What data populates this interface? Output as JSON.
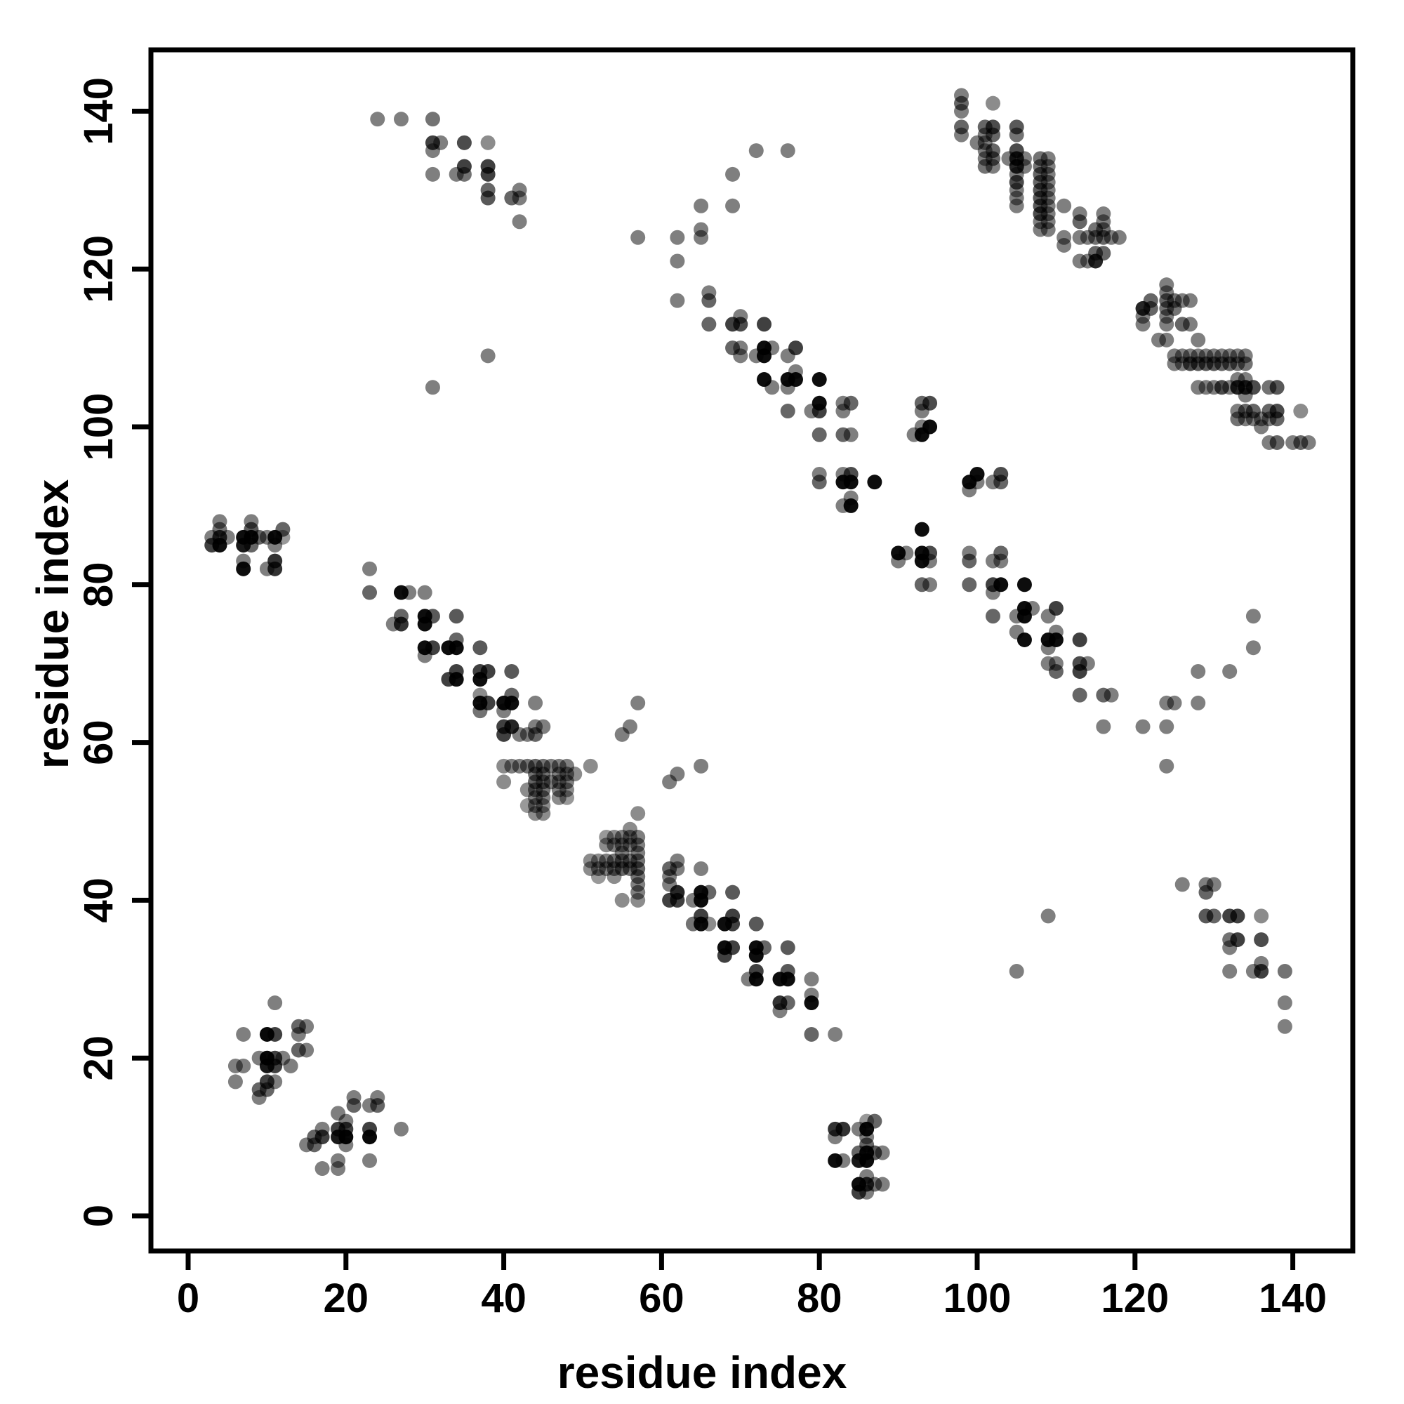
{
  "figure": {
    "background": "#ffffff",
    "x_axis_title": "residue index",
    "y_axis_title": "residue index"
  },
  "chart_data": {
    "type": "scatter",
    "title": "",
    "xlabel": "residue index",
    "ylabel": "residue index",
    "x_ticks": [
      0,
      20,
      40,
      60,
      80,
      100,
      120,
      140
    ],
    "y_ticks": [
      0,
      20,
      40,
      60,
      80,
      100,
      120,
      140
    ],
    "xlim": [
      -5,
      148
    ],
    "ylim": [
      -5,
      148
    ],
    "grid": false,
    "legend": "none",
    "point_color": "#000000",
    "symmetric_about_diagonal": true,
    "points_note": "points given for upper triangle (x<y); plot renders each point and its mirror (y,x); third value = darkness 0-1",
    "points": [
      [
        11,
        27,
        0.5
      ],
      [
        7,
        23,
        0.5
      ],
      [
        10,
        23,
        0.97
      ],
      [
        11,
        23,
        0.75
      ],
      [
        14,
        23,
        0.5
      ],
      [
        14,
        24,
        0.6
      ],
      [
        15,
        24,
        0.5
      ],
      [
        9,
        20,
        0.5
      ],
      [
        10,
        20,
        0.97
      ],
      [
        11,
        20,
        0.75
      ],
      [
        12,
        20,
        0.5
      ],
      [
        14,
        21,
        0.6
      ],
      [
        15,
        21,
        0.5
      ],
      [
        6,
        19,
        0.5
      ],
      [
        7,
        19,
        0.5
      ],
      [
        10,
        19,
        0.9
      ],
      [
        11,
        19,
        0.75
      ],
      [
        13,
        19,
        0.5
      ],
      [
        6,
        17,
        0.5
      ],
      [
        10,
        17,
        0.75
      ],
      [
        11,
        17,
        0.5
      ],
      [
        9,
        16,
        0.6
      ],
      [
        10,
        16,
        0.6
      ],
      [
        9,
        15,
        0.5
      ],
      [
        4,
        88,
        0.5
      ],
      [
        8,
        88,
        0.5
      ],
      [
        4,
        87,
        0.55
      ],
      [
        8,
        87,
        0.65
      ],
      [
        12,
        87,
        0.6
      ],
      [
        3,
        86,
        0.5
      ],
      [
        4,
        86,
        0.8
      ],
      [
        5,
        86,
        0.5
      ],
      [
        7,
        86,
        0.95
      ],
      [
        8,
        86,
        0.95
      ],
      [
        9,
        86,
        0.6
      ],
      [
        10,
        86,
        0.5
      ],
      [
        11,
        86,
        0.95
      ],
      [
        12,
        86,
        0.4
      ],
      [
        3,
        85,
        0.75
      ],
      [
        4,
        85,
        0.95
      ],
      [
        7,
        85,
        0.9
      ],
      [
        8,
        85,
        0.6
      ],
      [
        11,
        85,
        0.5
      ],
      [
        7,
        83,
        0.5
      ],
      [
        11,
        83,
        0.8
      ],
      [
        7,
        82,
        0.95
      ],
      [
        10,
        82,
        0.5
      ],
      [
        11,
        82,
        0.8
      ],
      [
        24,
        139,
        0.5
      ],
      [
        27,
        139,
        0.5
      ],
      [
        31,
        139,
        0.55
      ],
      [
        31,
        136,
        0.75
      ],
      [
        32,
        136,
        0.5
      ],
      [
        35,
        136,
        0.7
      ],
      [
        38,
        136,
        0.45
      ],
      [
        31,
        135,
        0.5
      ],
      [
        35,
        133,
        0.75
      ],
      [
        38,
        133,
        0.75
      ],
      [
        31,
        132,
        0.5
      ],
      [
        34,
        132,
        0.5
      ],
      [
        35,
        132,
        0.55
      ],
      [
        38,
        132,
        0.75
      ],
      [
        38,
        130,
        0.6
      ],
      [
        42,
        130,
        0.5
      ],
      [
        38,
        129,
        0.65
      ],
      [
        41,
        129,
        0.6
      ],
      [
        42,
        129,
        0.5
      ],
      [
        42,
        126,
        0.5
      ],
      [
        23,
        82,
        0.5
      ],
      [
        23,
        79,
        0.6
      ],
      [
        27,
        79,
        0.95
      ],
      [
        28,
        79,
        0.5
      ],
      [
        30,
        79,
        0.5
      ],
      [
        27,
        76,
        0.6
      ],
      [
        30,
        76,
        0.95
      ],
      [
        31,
        76,
        0.65
      ],
      [
        34,
        76,
        0.65
      ],
      [
        26,
        75,
        0.5
      ],
      [
        27,
        75,
        0.8
      ],
      [
        30,
        75,
        0.95
      ],
      [
        34,
        73,
        0.6
      ],
      [
        30,
        72,
        0.95
      ],
      [
        31,
        72,
        0.75
      ],
      [
        33,
        72,
        0.95
      ],
      [
        34,
        72,
        0.95
      ],
      [
        37,
        72,
        0.65
      ],
      [
        30,
        71,
        0.5
      ],
      [
        34,
        69,
        0.75
      ],
      [
        37,
        69,
        0.75
      ],
      [
        38,
        69,
        0.75
      ],
      [
        41,
        69,
        0.65
      ],
      [
        33,
        68,
        0.75
      ],
      [
        34,
        68,
        0.95
      ],
      [
        37,
        68,
        0.95
      ],
      [
        37,
        66,
        0.45
      ],
      [
        41,
        66,
        0.6
      ],
      [
        37,
        65,
        0.95
      ],
      [
        38,
        65,
        0.75
      ],
      [
        40,
        65,
        0.95
      ],
      [
        41,
        65,
        0.95
      ],
      [
        44,
        65,
        0.5
      ],
      [
        37,
        64,
        0.55
      ],
      [
        40,
        64,
        0.5
      ],
      [
        40,
        62,
        0.75
      ],
      [
        41,
        62,
        0.85
      ],
      [
        44,
        62,
        0.5
      ],
      [
        45,
        62,
        0.5
      ],
      [
        40,
        61,
        0.75
      ],
      [
        42,
        61,
        0.5
      ],
      [
        43,
        61,
        0.5
      ],
      [
        44,
        61,
        0.6
      ],
      [
        40,
        57,
        0.45
      ],
      [
        41,
        57,
        0.5
      ],
      [
        42,
        57,
        0.5
      ],
      [
        43,
        57,
        0.55
      ],
      [
        44,
        57,
        0.6
      ],
      [
        45,
        57,
        0.55
      ],
      [
        46,
        57,
        0.5
      ],
      [
        47,
        57,
        0.5
      ],
      [
        48,
        57,
        0.5
      ],
      [
        40,
        55,
        0.45
      ],
      [
        44,
        56,
        0.55
      ],
      [
        45,
        56,
        0.55
      ],
      [
        47,
        56,
        0.5
      ],
      [
        48,
        56,
        0.5
      ],
      [
        49,
        56,
        0.45
      ],
      [
        44,
        55,
        0.6
      ],
      [
        45,
        55,
        0.55
      ],
      [
        46,
        55,
        0.5
      ],
      [
        47,
        55,
        0.5
      ],
      [
        48,
        55,
        0.5
      ],
      [
        43,
        54,
        0.45
      ],
      [
        44,
        54,
        0.55
      ],
      [
        45,
        54,
        0.55
      ],
      [
        47,
        54,
        0.5
      ],
      [
        48,
        54,
        0.45
      ],
      [
        44,
        53,
        0.5
      ],
      [
        45,
        53,
        0.5
      ],
      [
        47,
        53,
        0.45
      ],
      [
        48,
        53,
        0.4
      ],
      [
        43,
        52,
        0.4
      ],
      [
        44,
        52,
        0.5
      ],
      [
        45,
        52,
        0.45
      ],
      [
        44,
        51,
        0.45
      ],
      [
        45,
        51,
        0.45
      ],
      [
        51,
        57,
        0.45
      ],
      [
        55,
        61,
        0.5
      ],
      [
        56,
        62,
        0.5
      ],
      [
        57,
        65,
        0.5
      ],
      [
        31,
        105,
        0.5
      ],
      [
        38,
        109,
        0.5
      ],
      [
        57,
        124,
        0.5
      ],
      [
        72,
        135,
        0.5
      ],
      [
        76,
        135,
        0.5
      ],
      [
        69,
        132,
        0.5
      ],
      [
        65,
        128,
        0.5
      ],
      [
        69,
        128,
        0.5
      ],
      [
        65,
        125,
        0.5
      ],
      [
        65,
        124,
        0.5
      ],
      [
        62,
        124,
        0.5
      ],
      [
        62,
        121,
        0.5
      ],
      [
        66,
        117,
        0.5
      ],
      [
        62,
        116,
        0.5
      ],
      [
        66,
        116,
        0.6
      ],
      [
        66,
        113,
        0.6
      ],
      [
        69,
        113,
        0.75
      ],
      [
        70,
        113,
        0.7
      ],
      [
        73,
        113,
        0.75
      ],
      [
        70,
        114,
        0.5
      ],
      [
        69,
        110,
        0.6
      ],
      [
        70,
        110,
        0.5
      ],
      [
        73,
        110,
        0.95
      ],
      [
        74,
        110,
        0.5
      ],
      [
        77,
        110,
        0.75
      ],
      [
        70,
        109,
        0.5
      ],
      [
        72,
        109,
        0.5
      ],
      [
        73,
        109,
        0.95
      ],
      [
        76,
        109,
        0.5
      ],
      [
        74,
        105,
        0.5
      ],
      [
        76,
        105,
        0.5
      ],
      [
        73,
        106,
        0.95
      ],
      [
        76,
        106,
        0.95
      ],
      [
        77,
        106,
        0.95
      ],
      [
        80,
        106,
        0.95
      ],
      [
        77,
        107,
        0.5
      ],
      [
        76,
        102,
        0.6
      ],
      [
        79,
        102,
        0.5
      ],
      [
        80,
        102,
        0.75
      ],
      [
        83,
        102,
        0.5
      ],
      [
        80,
        103,
        0.95
      ],
      [
        83,
        103,
        0.5
      ],
      [
        84,
        103,
        0.6
      ],
      [
        80,
        99,
        0.6
      ],
      [
        83,
        99,
        0.6
      ],
      [
        84,
        99,
        0.5
      ],
      [
        92,
        99,
        0.5
      ],
      [
        93,
        99,
        0.95
      ],
      [
        93,
        100,
        0.5
      ],
      [
        94,
        100,
        0.95
      ],
      [
        93,
        102,
        0.5
      ],
      [
        93,
        103,
        0.6
      ],
      [
        94,
        103,
        0.7
      ],
      [
        80,
        94,
        0.5
      ],
      [
        80,
        93,
        0.6
      ],
      [
        83,
        94,
        0.5
      ],
      [
        84,
        94,
        0.7
      ],
      [
        83,
        93,
        0.95
      ],
      [
        84,
        93,
        0.95
      ],
      [
        87,
        93,
        0.95
      ],
      [
        84,
        91,
        0.5
      ],
      [
        83,
        90,
        0.5
      ],
      [
        84,
        90,
        0.95
      ],
      [
        98,
        142,
        0.5
      ],
      [
        98,
        141,
        0.6
      ],
      [
        98,
        140,
        0.5
      ],
      [
        98,
        138,
        0.6
      ],
      [
        98,
        137,
        0.5
      ],
      [
        102,
        141,
        0.45
      ],
      [
        101,
        138,
        0.6
      ],
      [
        102,
        138,
        0.7
      ],
      [
        105,
        138,
        0.65
      ],
      [
        101,
        137,
        0.5
      ],
      [
        102,
        137,
        0.6
      ],
      [
        105,
        137,
        0.55
      ],
      [
        101,
        136,
        0.5
      ],
      [
        100,
        136,
        0.5
      ],
      [
        101,
        135,
        0.5
      ],
      [
        102,
        135,
        0.6
      ],
      [
        105,
        135,
        0.7
      ],
      [
        101,
        134,
        0.5
      ],
      [
        102,
        134,
        0.6
      ],
      [
        104,
        134,
        0.5
      ],
      [
        105,
        134,
        0.85
      ],
      [
        106,
        134,
        0.5
      ],
      [
        108,
        134,
        0.55
      ],
      [
        109,
        134,
        0.5
      ],
      [
        101,
        133,
        0.55
      ],
      [
        102,
        133,
        0.5
      ],
      [
        105,
        133,
        0.85
      ],
      [
        106,
        133,
        0.5
      ],
      [
        108,
        133,
        0.55
      ],
      [
        109,
        133,
        0.5
      ],
      [
        105,
        132,
        0.5
      ],
      [
        108,
        132,
        0.6
      ],
      [
        109,
        132,
        0.5
      ],
      [
        105,
        131,
        0.7
      ],
      [
        108,
        131,
        0.6
      ],
      [
        109,
        131,
        0.5
      ],
      [
        105,
        130,
        0.5
      ],
      [
        108,
        130,
        0.65
      ],
      [
        109,
        130,
        0.5
      ],
      [
        105,
        129,
        0.5
      ],
      [
        108,
        129,
        0.65
      ],
      [
        109,
        129,
        0.5
      ],
      [
        105,
        128,
        0.5
      ],
      [
        108,
        128,
        0.65
      ],
      [
        109,
        128,
        0.5
      ],
      [
        111,
        128,
        0.5
      ],
      [
        108,
        127,
        0.7
      ],
      [
        109,
        127,
        0.5
      ],
      [
        113,
        127,
        0.5
      ],
      [
        116,
        127,
        0.5
      ],
      [
        108,
        126,
        0.5
      ],
      [
        109,
        126,
        0.5
      ],
      [
        113,
        126,
        0.6
      ],
      [
        116,
        126,
        0.5
      ],
      [
        108,
        125,
        0.5
      ],
      [
        109,
        125,
        0.5
      ],
      [
        115,
        125,
        0.55
      ],
      [
        116,
        125,
        0.55
      ],
      [
        111,
        124,
        0.5
      ],
      [
        111,
        123,
        0.5
      ],
      [
        113,
        124,
        0.5
      ],
      [
        114,
        124,
        0.5
      ],
      [
        115,
        124,
        0.55
      ],
      [
        116,
        124,
        0.6
      ],
      [
        117,
        124,
        0.5
      ],
      [
        118,
        124,
        0.5
      ],
      [
        115,
        122,
        0.6
      ],
      [
        116,
        122,
        0.6
      ],
      [
        113,
        121,
        0.5
      ],
      [
        114,
        121,
        0.5
      ],
      [
        115,
        121,
        0.85
      ]
    ]
  }
}
